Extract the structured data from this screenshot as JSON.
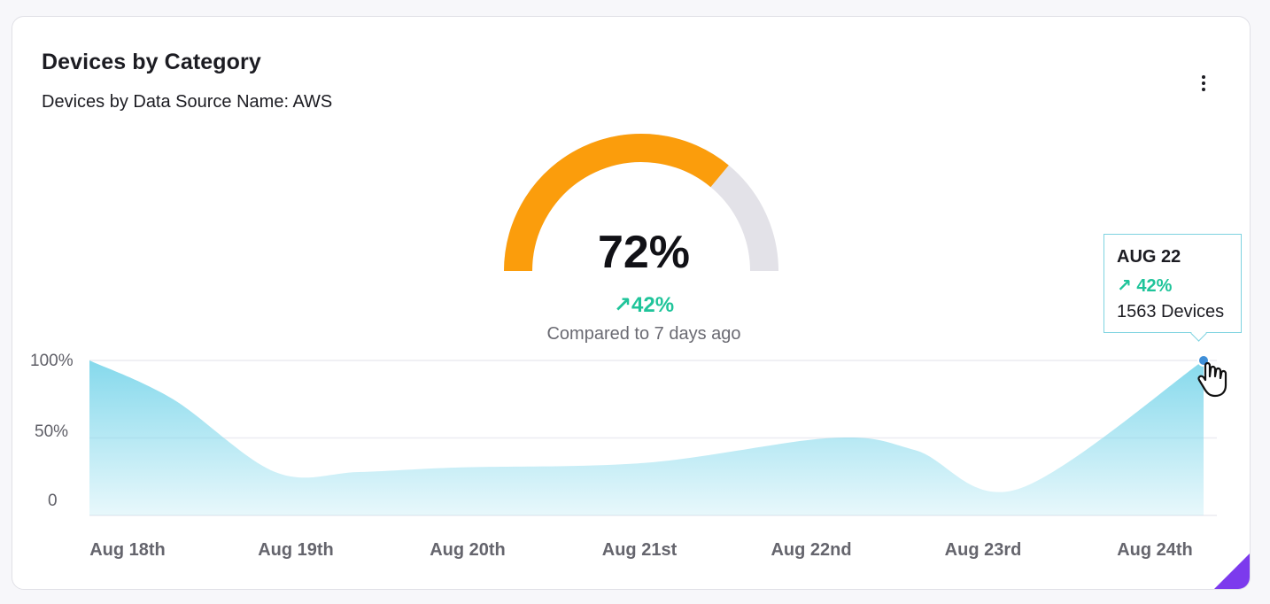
{
  "widget": {
    "title": "Devices by Category",
    "subtitle": "Devices by Data Source Name: AWS",
    "menu_icon": "more-vertical-icon"
  },
  "gauge": {
    "value": 72,
    "value_label": "72%",
    "change_label": "42%",
    "change_icon": "arrow-up-right-icon",
    "caption": "Compared to 7 days ago",
    "fill_color": "#FB9D0C",
    "track_color": "#E3E2E8"
  },
  "chart_data": {
    "type": "area",
    "x": [
      "Aug 18th",
      "Aug 19th",
      "Aug 20th",
      "Aug 21st",
      "Aug 22nd",
      "Aug 23rd",
      "Aug 24th"
    ],
    "y_ticks": [
      "100%",
      "50%",
      "0"
    ],
    "ylim": [
      0,
      100
    ],
    "series": [
      {
        "points": [
          [
            "Aug 18th",
            100
          ],
          [
            "Aug 18th",
            75
          ],
          [
            "Aug 19th",
            28
          ],
          [
            "Aug 19th",
            28
          ],
          [
            "Aug 20th",
            31
          ],
          [
            "Aug 21st",
            34
          ],
          [
            "Aug 22nd",
            50
          ],
          [
            "Aug 22nd",
            42
          ],
          [
            "Aug 23rd",
            17
          ],
          [
            "Aug 24th",
            100
          ]
        ],
        "color": "#7FD7EB"
      }
    ],
    "grid": true
  },
  "tooltip": {
    "date": "AUG 22",
    "change": "42%",
    "value": "1563 Devices"
  },
  "accent_color": "#7C3AED"
}
